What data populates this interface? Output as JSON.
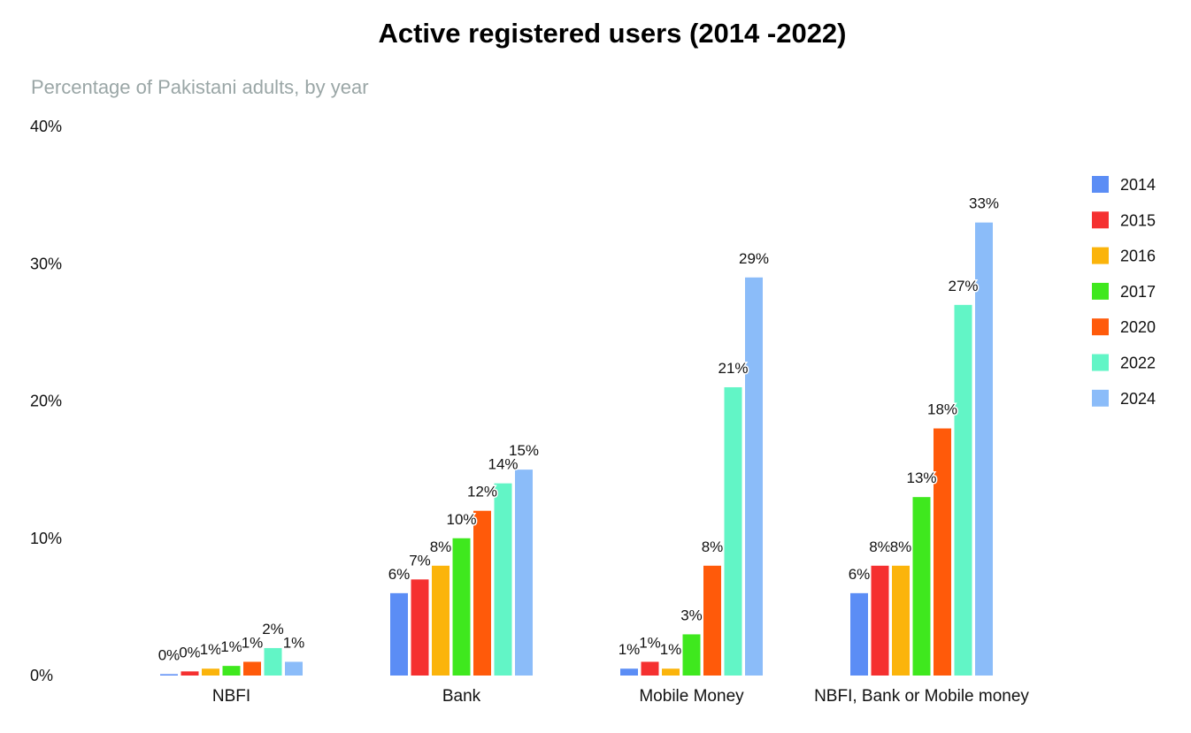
{
  "chart_data": {
    "type": "bar",
    "title": "Active registered users (2014 -2022)",
    "subtitle": "Percentage of Pakistani adults, by year",
    "categories": [
      "NBFI",
      "Bank",
      "Mobile Money",
      "NBFI, Bank or Mobile money"
    ],
    "series": [
      {
        "name": "2014",
        "color": "#5B8DF5",
        "values": [
          0.1,
          6,
          0.5,
          6
        ],
        "labels": [
          "0%",
          "6%",
          "1%",
          "6%"
        ]
      },
      {
        "name": "2015",
        "color": "#F53030",
        "values": [
          0.3,
          7,
          1,
          8
        ],
        "labels": [
          "0%",
          "7%",
          "1%",
          "8%"
        ]
      },
      {
        "name": "2016",
        "color": "#FBB40B",
        "values": [
          0.5,
          8,
          0.5,
          8
        ],
        "labels": [
          "1%",
          "8%",
          "1%",
          "8%"
        ]
      },
      {
        "name": "2017",
        "color": "#3FE81E",
        "values": [
          0.7,
          10,
          3,
          13
        ],
        "labels": [
          "1%",
          "10%",
          "3%",
          "13%"
        ]
      },
      {
        "name": "2020",
        "color": "#FF5A0A",
        "values": [
          1,
          12,
          8,
          18
        ],
        "labels": [
          "1%",
          "12%",
          "8%",
          "18%"
        ]
      },
      {
        "name": "2022",
        "color": "#62F5C6",
        "values": [
          2,
          14,
          21,
          27
        ],
        "labels": [
          "2%",
          "14%",
          "21%",
          "27%"
        ]
      },
      {
        "name": "2024",
        "color": "#8BBCF9",
        "values": [
          1,
          15,
          29,
          33
        ],
        "labels": [
          "1%",
          "15%",
          "29%",
          "33%"
        ]
      }
    ],
    "ylim": [
      0,
      40
    ],
    "yticks": [
      0,
      10,
      20,
      30,
      40
    ],
    "ytick_labels": [
      "0%",
      "10%",
      "20%",
      "30%",
      "40%"
    ],
    "xlabel": "",
    "ylabel": "",
    "legend": "right",
    "grid": false
  }
}
